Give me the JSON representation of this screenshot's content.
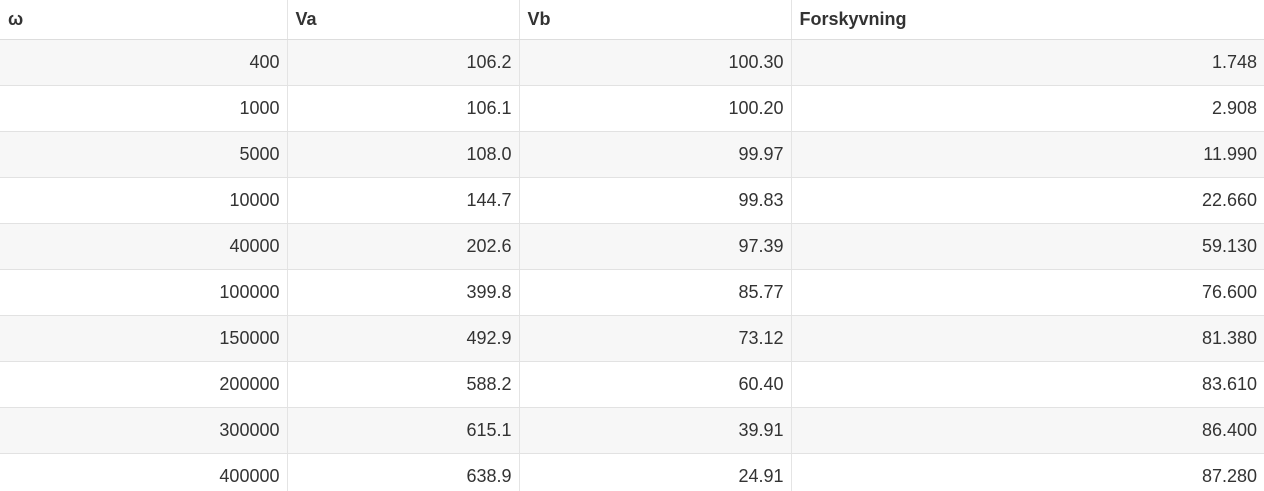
{
  "table": {
    "headers": [
      "ω",
      "Va",
      "Vb",
      "Forskyvning"
    ],
    "rows": [
      [
        "400",
        "106.2",
        "100.30",
        "1.748"
      ],
      [
        "1000",
        "106.1",
        "100.20",
        "2.908"
      ],
      [
        "5000",
        "108.0",
        "99.97",
        "11.990"
      ],
      [
        "10000",
        "144.7",
        "99.83",
        "22.660"
      ],
      [
        "40000",
        "202.6",
        "97.39",
        "59.130"
      ],
      [
        "100000",
        "399.8",
        "85.77",
        "76.600"
      ],
      [
        "150000",
        "492.9",
        "73.12",
        "81.380"
      ],
      [
        "200000",
        "588.2",
        "60.40",
        "83.610"
      ],
      [
        "300000",
        "615.1",
        "39.91",
        "86.400"
      ],
      [
        "400000",
        "638.9",
        "24.91",
        "87.280"
      ]
    ]
  }
}
